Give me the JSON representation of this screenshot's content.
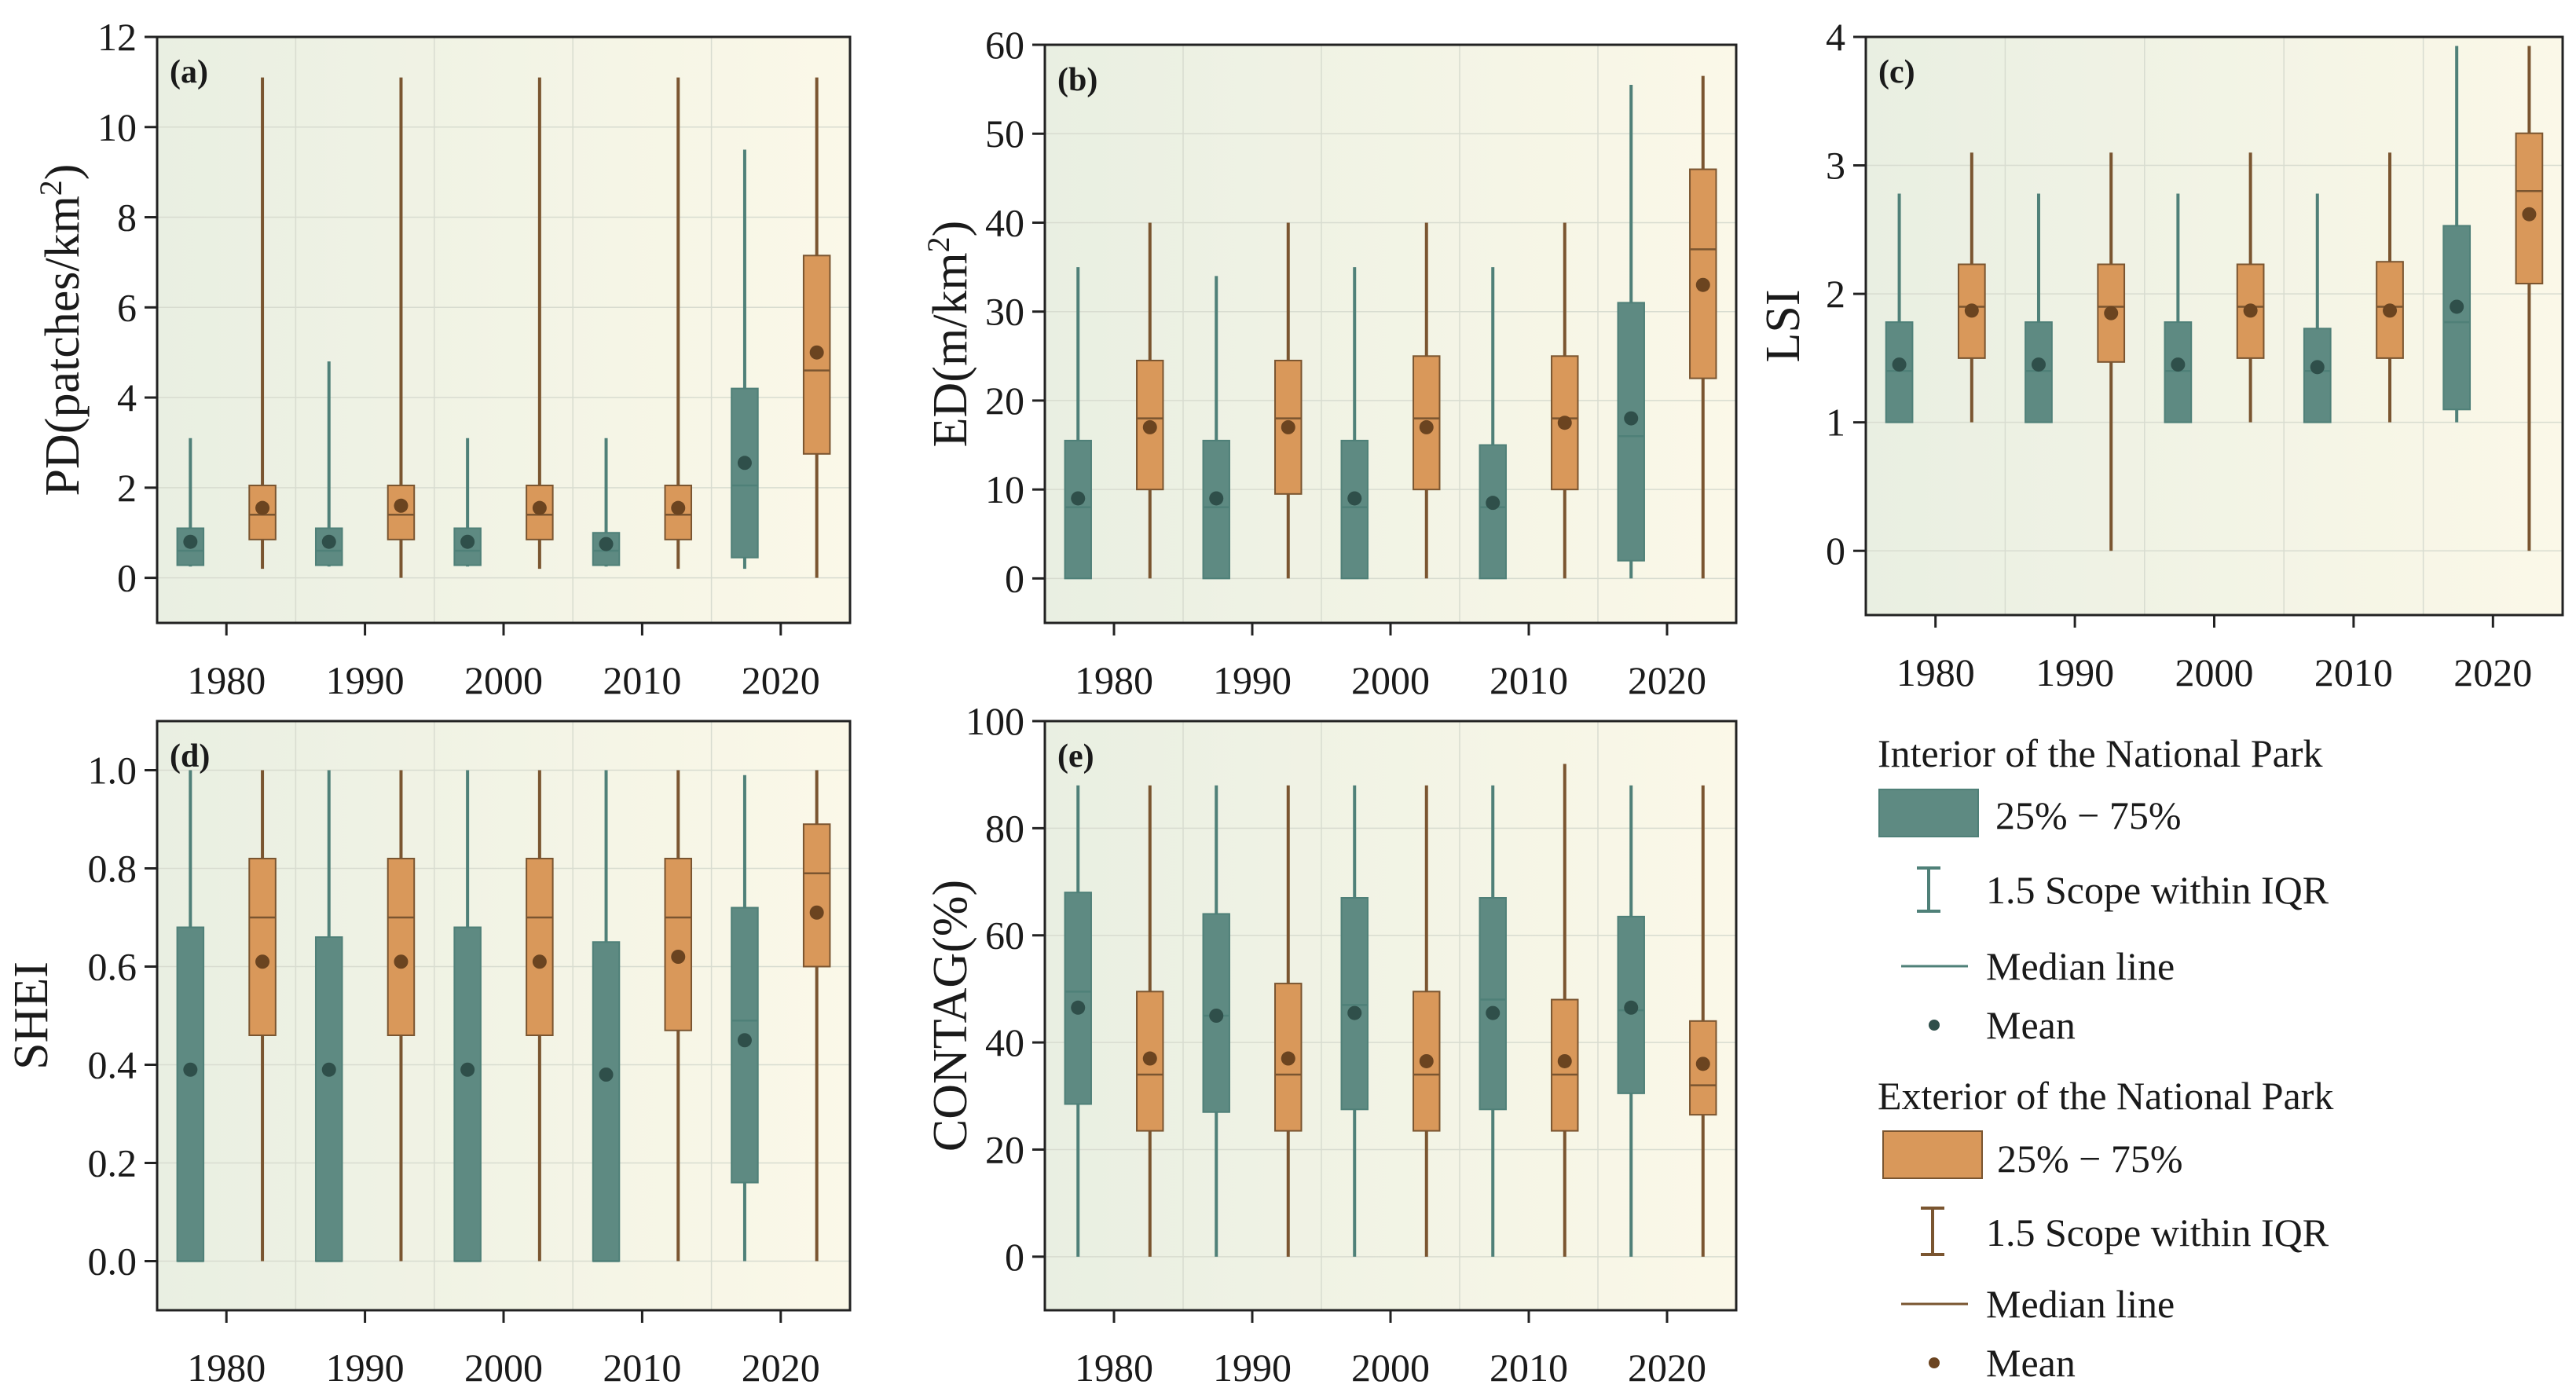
{
  "colors": {
    "interior_fill": "#5e8a82",
    "interior_line": "#4f8078",
    "interior_mean": "#2f4f4a",
    "exterior_fill": "#d9985a",
    "exterior_line": "#7a5530",
    "exterior_mean": "#6b4420",
    "panel_bg_left": "#e9efe2",
    "panel_bg_right": "#fbf8e8",
    "grid": "#d8dcd0"
  },
  "legend": {
    "interior_title": "Interior of the National Park",
    "exterior_title": "Exterior of the National Park",
    "box_label": "25% − 75%",
    "whisker_label": "1.5 Scope within IQR",
    "median_label": "Median line",
    "mean_label": "Mean"
  },
  "chart_data": [
    {
      "id": "a",
      "label": "(a)",
      "type": "box",
      "ylabel": "PD(patches/km²)",
      "ylabel_main": "PD(patches/km",
      "ylabel_sup": "2",
      "ylabel_tail": ")",
      "ylim": [
        -1,
        12
      ],
      "yticks": [
        0,
        2,
        4,
        6,
        8,
        10,
        12
      ],
      "categories": [
        "1980",
        "1990",
        "2000",
        "2010",
        "2020"
      ],
      "series": [
        {
          "name": "Interior of the National Park",
          "boxes": [
            {
              "min": 0.25,
              "q1": 0.28,
              "median": 0.6,
              "q3": 1.1,
              "max": 3.1,
              "mean": 0.8
            },
            {
              "min": 0.25,
              "q1": 0.28,
              "median": 0.6,
              "q3": 1.1,
              "max": 4.8,
              "mean": 0.8
            },
            {
              "min": 0.25,
              "q1": 0.28,
              "median": 0.6,
              "q3": 1.1,
              "max": 3.1,
              "mean": 0.8
            },
            {
              "min": 0.25,
              "q1": 0.28,
              "median": 0.6,
              "q3": 1.0,
              "max": 3.1,
              "mean": 0.75
            },
            {
              "min": 0.2,
              "q1": 0.45,
              "median": 2.05,
              "q3": 4.2,
              "max": 9.5,
              "mean": 2.55
            }
          ]
        },
        {
          "name": "Exterior of the National Park",
          "boxes": [
            {
              "min": 0.2,
              "q1": 0.85,
              "median": 1.4,
              "q3": 2.05,
              "max": 11.1,
              "mean": 1.55
            },
            {
              "min": 0.0,
              "q1": 0.85,
              "median": 1.4,
              "q3": 2.05,
              "max": 11.1,
              "mean": 1.6
            },
            {
              "min": 0.2,
              "q1": 0.85,
              "median": 1.4,
              "q3": 2.05,
              "max": 11.1,
              "mean": 1.55
            },
            {
              "min": 0.2,
              "q1": 0.85,
              "median": 1.4,
              "q3": 2.05,
              "max": 11.1,
              "mean": 1.55
            },
            {
              "min": 0.0,
              "q1": 2.75,
              "median": 4.6,
              "q3": 7.15,
              "max": 11.1,
              "mean": 5.0
            }
          ]
        }
      ]
    },
    {
      "id": "b",
      "label": "(b)",
      "type": "box",
      "ylabel": "ED(m/km²)",
      "ylabel_main": "ED(m/km",
      "ylabel_sup": "2",
      "ylabel_tail": ")",
      "ylim": [
        -5,
        60
      ],
      "yticks": [
        0,
        10,
        20,
        30,
        40,
        50,
        60
      ],
      "categories": [
        "1980",
        "1990",
        "2000",
        "2010",
        "2020"
      ],
      "series": [
        {
          "name": "Interior of the National Park",
          "boxes": [
            {
              "min": 0,
              "q1": 0,
              "median": 8,
              "q3": 15.5,
              "max": 35,
              "mean": 9
            },
            {
              "min": 0,
              "q1": 0,
              "median": 8,
              "q3": 15.5,
              "max": 34,
              "mean": 9
            },
            {
              "min": 0,
              "q1": 0,
              "median": 8,
              "q3": 15.5,
              "max": 35,
              "mean": 9
            },
            {
              "min": 0,
              "q1": 0,
              "median": 8,
              "q3": 15,
              "max": 35,
              "mean": 8.5
            },
            {
              "min": 0,
              "q1": 2,
              "median": 16,
              "q3": 31,
              "max": 55.5,
              "mean": 18
            }
          ]
        },
        {
          "name": "Exterior of the National Park",
          "boxes": [
            {
              "min": 0,
              "q1": 10,
              "median": 18,
              "q3": 24.5,
              "max": 40,
              "mean": 17
            },
            {
              "min": 0,
              "q1": 9.5,
              "median": 18,
              "q3": 24.5,
              "max": 40,
              "mean": 17
            },
            {
              "min": 0,
              "q1": 10,
              "median": 18,
              "q3": 25,
              "max": 40,
              "mean": 17
            },
            {
              "min": 0,
              "q1": 10,
              "median": 18,
              "q3": 25,
              "max": 40,
              "mean": 17.5
            },
            {
              "min": 0,
              "q1": 22.5,
              "median": 37,
              "q3": 46,
              "max": 56.5,
              "mean": 33
            }
          ]
        }
      ]
    },
    {
      "id": "c",
      "label": "(c)",
      "type": "box",
      "ylabel": "LSI",
      "ylim": [
        -0.5,
        4
      ],
      "yticks": [
        0,
        1,
        2,
        3,
        4
      ],
      "categories": [
        "1980",
        "1990",
        "2000",
        "2010",
        "2020"
      ],
      "series": [
        {
          "name": "Interior of the National Park",
          "boxes": [
            {
              "min": 1,
              "q1": 1,
              "median": 1.4,
              "q3": 1.78,
              "max": 2.78,
              "mean": 1.45
            },
            {
              "min": 1,
              "q1": 1,
              "median": 1.4,
              "q3": 1.78,
              "max": 2.78,
              "mean": 1.45
            },
            {
              "min": 1,
              "q1": 1,
              "median": 1.4,
              "q3": 1.78,
              "max": 2.78,
              "mean": 1.45
            },
            {
              "min": 1,
              "q1": 1,
              "median": 1.4,
              "q3": 1.73,
              "max": 2.78,
              "mean": 1.43
            },
            {
              "min": 1,
              "q1": 1.1,
              "median": 1.78,
              "q3": 2.53,
              "max": 3.93,
              "mean": 1.9
            }
          ]
        },
        {
          "name": "Exterior of the National Park",
          "boxes": [
            {
              "min": 1,
              "q1": 1.5,
              "median": 1.9,
              "q3": 2.23,
              "max": 3.1,
              "mean": 1.87
            },
            {
              "min": 0,
              "q1": 1.47,
              "median": 1.9,
              "q3": 2.23,
              "max": 3.1,
              "mean": 1.85
            },
            {
              "min": 1,
              "q1": 1.5,
              "median": 1.9,
              "q3": 2.23,
              "max": 3.1,
              "mean": 1.87
            },
            {
              "min": 1,
              "q1": 1.5,
              "median": 1.9,
              "q3": 2.25,
              "max": 3.1,
              "mean": 1.87
            },
            {
              "min": 0,
              "q1": 2.08,
              "median": 2.8,
              "q3": 3.25,
              "max": 3.93,
              "mean": 2.62
            }
          ]
        }
      ]
    },
    {
      "id": "d",
      "label": "(d)",
      "type": "box",
      "ylabel": "SHEI",
      "ylim": [
        -0.1,
        1.1
      ],
      "yticks": [
        0.0,
        0.2,
        0.4,
        0.6,
        0.8,
        1.0
      ],
      "ytick_labels": [
        "0.0",
        "0.2",
        "0.4",
        "0.6",
        "0.8",
        "1.0"
      ],
      "categories": [
        "1980",
        "1990",
        "2000",
        "2010",
        "2020"
      ],
      "series": [
        {
          "name": "Interior of the National Park",
          "boxes": [
            {
              "min": 0,
              "q1": 0,
              "median": 0,
              "q3": 0.68,
              "max": 1.0,
              "mean": 0.39
            },
            {
              "min": 0,
              "q1": 0,
              "median": 0,
              "q3": 0.66,
              "max": 1.0,
              "mean": 0.39
            },
            {
              "min": 0,
              "q1": 0,
              "median": 0,
              "q3": 0.68,
              "max": 1.0,
              "mean": 0.39
            },
            {
              "min": 0,
              "q1": 0,
              "median": 0,
              "q3": 0.65,
              "max": 1.0,
              "mean": 0.38
            },
            {
              "min": 0,
              "q1": 0.16,
              "median": 0.49,
              "q3": 0.72,
              "max": 0.99,
              "mean": 0.45
            }
          ]
        },
        {
          "name": "Exterior of the National Park",
          "boxes": [
            {
              "min": 0,
              "q1": 0.46,
              "median": 0.7,
              "q3": 0.82,
              "max": 1.0,
              "mean": 0.61
            },
            {
              "min": 0,
              "q1": 0.46,
              "median": 0.7,
              "q3": 0.82,
              "max": 1.0,
              "mean": 0.61
            },
            {
              "min": 0,
              "q1": 0.46,
              "median": 0.7,
              "q3": 0.82,
              "max": 1.0,
              "mean": 0.61
            },
            {
              "min": 0,
              "q1": 0.47,
              "median": 0.7,
              "q3": 0.82,
              "max": 1.0,
              "mean": 0.62
            },
            {
              "min": 0,
              "q1": 0.6,
              "median": 0.79,
              "q3": 0.89,
              "max": 1.0,
              "mean": 0.71
            }
          ]
        }
      ]
    },
    {
      "id": "e",
      "label": "(e)",
      "type": "box",
      "ylabel": "CONTAG(%)",
      "ylim": [
        -10,
        100
      ],
      "yticks": [
        0,
        20,
        40,
        60,
        80,
        100
      ],
      "categories": [
        "1980",
        "1990",
        "2000",
        "2010",
        "2020"
      ],
      "series": [
        {
          "name": "Interior of the National Park",
          "boxes": [
            {
              "min": 0,
              "q1": 28.5,
              "median": 49.5,
              "q3": 68,
              "max": 88,
              "mean": 46.5
            },
            {
              "min": 0,
              "q1": 27,
              "median": 45,
              "q3": 64,
              "max": 88,
              "mean": 45
            },
            {
              "min": 0,
              "q1": 27.5,
              "median": 47,
              "q3": 67,
              "max": 88,
              "mean": 45.5
            },
            {
              "min": 0,
              "q1": 27.5,
              "median": 48,
              "q3": 67,
              "max": 88,
              "mean": 45.5
            },
            {
              "min": 0,
              "q1": 30.5,
              "median": 46,
              "q3": 63.5,
              "max": 88,
              "mean": 46.5
            }
          ]
        },
        {
          "name": "Exterior of the National Park",
          "boxes": [
            {
              "min": 0,
              "q1": 23.5,
              "median": 34,
              "q3": 49.5,
              "max": 88,
              "mean": 37
            },
            {
              "min": 0,
              "q1": 23.5,
              "median": 34,
              "q3": 51,
              "max": 88,
              "mean": 37
            },
            {
              "min": 0,
              "q1": 23.5,
              "median": 34,
              "q3": 49.5,
              "max": 88,
              "mean": 36.5
            },
            {
              "min": 0,
              "q1": 23.5,
              "median": 34,
              "q3": 48,
              "max": 92,
              "mean": 36.5
            },
            {
              "min": 0,
              "q1": 26.5,
              "median": 32,
              "q3": 44,
              "max": 88,
              "mean": 36
            }
          ]
        }
      ]
    }
  ]
}
